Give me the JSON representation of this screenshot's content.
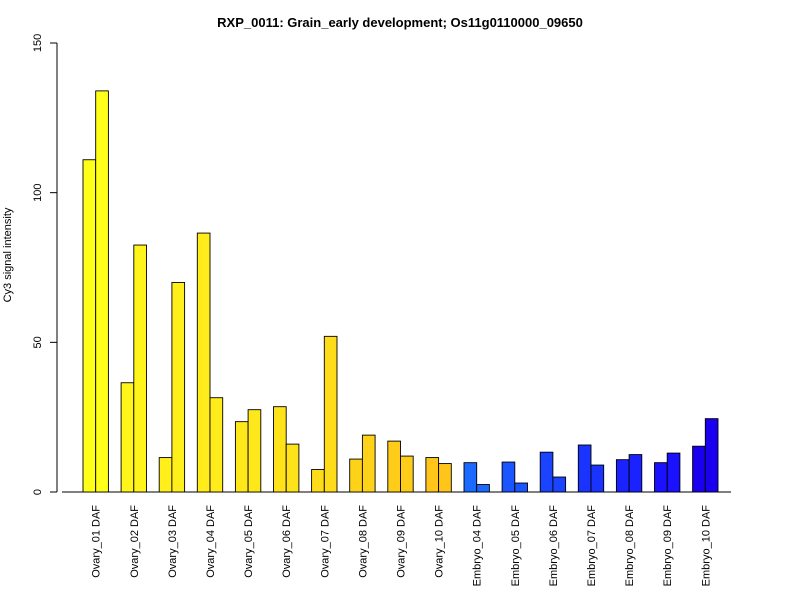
{
  "chart_data": {
    "type": "bar",
    "title": "RXP_0011: Grain_early development; Os11g0110000_09650",
    "xlabel": "",
    "ylabel": "Cy3 signal intensity",
    "ylim": [
      0,
      150
    ],
    "yticks": [
      0,
      50,
      100,
      150
    ],
    "grid": false,
    "categories": [
      "Ovary_01 DAF",
      "Ovary_02 DAF",
      "Ovary_03 DAF",
      "Ovary_04 DAF",
      "Ovary_05 DAF",
      "Ovary_06 DAF",
      "Ovary_07 DAF",
      "Ovary_08 DAF",
      "Ovary_09 DAF",
      "Ovary_10 DAF",
      "Embryo_04 DAF",
      "Embryo_05 DAF",
      "Embryo_06 DAF",
      "Embryo_07 DAF",
      "Embryo_08 DAF",
      "Embryo_09 DAF",
      "Embryo_10 DAF"
    ],
    "series": [
      {
        "values": [
          111,
          36.5,
          11.5,
          86.5,
          23.5,
          28.5,
          7.5,
          11,
          17,
          11.5,
          9.8,
          10,
          13.3,
          15.7,
          10.8,
          9.8,
          15.3
        ]
      },
      {
        "values": [
          134,
          82.5,
          70,
          31.5,
          27.5,
          16,
          52,
          19,
          12,
          9.5,
          2.5,
          3,
          5,
          9,
          12.5,
          13,
          24.5
        ]
      }
    ],
    "colors": [
      "#ffff1a",
      "#fff51a",
      "#ffef1a",
      "#ffec1a",
      "#ffe81a",
      "#ffe31a",
      "#ffdc1a",
      "#ffd21a",
      "#ffcc1a",
      "#ffc51a",
      "#1a6aff",
      "#1a55ff",
      "#1a44ff",
      "#1a33ff",
      "#1a22ff",
      "#1a11ff",
      "#1a00ee"
    ]
  }
}
